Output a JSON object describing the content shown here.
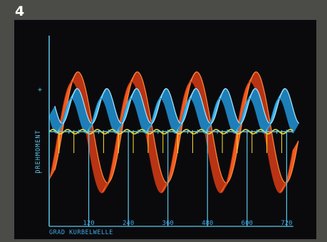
{
  "figure_number": "4",
  "colors": {
    "background": "#0a0a0d",
    "frame": "#4b4b48",
    "axis": "#5ec8e8",
    "tick_label": "#3ea8e0",
    "orange_ribbon": "#f25a1e",
    "orange_shadow": "#b83414",
    "blue_ribbon": "#3cb6ee",
    "blue_highlight": "#a8e6ff",
    "yellow_curve": "#ffe22a"
  },
  "chart_data": {
    "type": "line",
    "title": "",
    "xlabel": "GRAD KURBELWELLE",
    "ylabel": "DREHMOMENT",
    "y_plus": "+",
    "y_minus": "–",
    "xlim": [
      0,
      740
    ],
    "x_ticks": [
      120,
      240,
      360,
      480,
      600,
      720
    ],
    "x_tick_labels": [
      "120",
      "240",
      "360",
      "480",
      "600",
      "720"
    ],
    "grid": false,
    "legend": "none",
    "series": [
      {
        "period": 180,
        "amplitude": 1.0,
        "phase": 90,
        "style": "orange 3D ribbon"
      },
      {
        "period": 90,
        "amplitude": 0.35,
        "phase": 45,
        "offset": 0.45,
        "style": "blue 3D ribbon"
      },
      {
        "period": 45,
        "amplitude": 0.05,
        "style": "yellow line"
      }
    ]
  }
}
